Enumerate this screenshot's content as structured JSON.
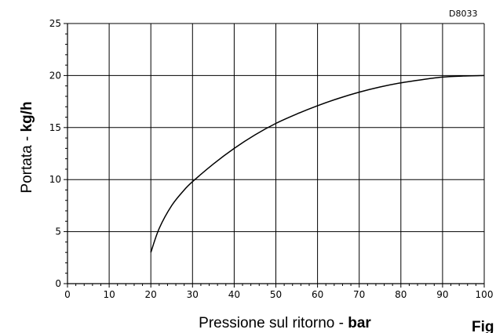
{
  "chart_data": {
    "type": "line",
    "code": "D8033",
    "figure_label": "Fig",
    "xlabel": {
      "text": "Pressione sul ritorno - ",
      "bold": "bar"
    },
    "ylabel": {
      "text": "Portata - ",
      "bold": "kg/h"
    },
    "xlim": [
      0,
      100
    ],
    "ylim": [
      0,
      25
    ],
    "x_ticks": [
      0,
      10,
      20,
      30,
      40,
      50,
      60,
      70,
      80,
      90,
      100
    ],
    "y_ticks": [
      0,
      5,
      10,
      15,
      20,
      25
    ],
    "grid": true,
    "series": [
      {
        "x": [
          20,
          22,
          25,
          28,
          30,
          35,
          40,
          45,
          50,
          55,
          60,
          65,
          70,
          75,
          80,
          85,
          90,
          95,
          100
        ],
        "y": [
          3.0,
          5.3,
          7.5,
          9.0,
          9.8,
          11.5,
          13.0,
          14.3,
          15.4,
          16.3,
          17.1,
          17.8,
          18.4,
          18.9,
          19.3,
          19.6,
          19.85,
          19.95,
          20.0
        ]
      }
    ]
  }
}
